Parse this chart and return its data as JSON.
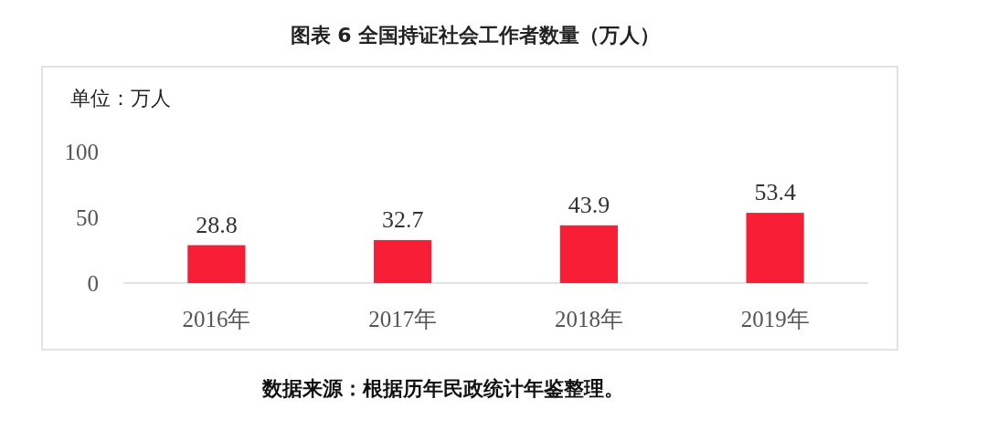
{
  "chart_data": {
    "type": "bar",
    "title": "图表 6 全国持证社会工作者数量（万人）",
    "ylabel": "单位：万人",
    "categories": [
      "2016年",
      "2017年",
      "2018年",
      "2019年"
    ],
    "values": [
      28.8,
      32.7,
      43.9,
      53.4
    ],
    "color": "#f81e36",
    "ylim": [
      0,
      100
    ],
    "yticks": [
      0,
      50,
      100
    ],
    "grid": false,
    "data_labels": true,
    "annotations": [
      "数据来源：根据历年民政统计年鉴整理。"
    ]
  }
}
